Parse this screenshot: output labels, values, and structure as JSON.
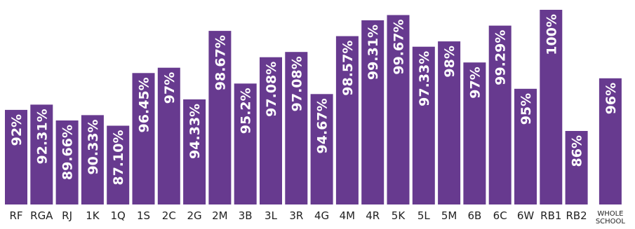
{
  "chart_data": {
    "type": "bar",
    "bar_color": "#673a8f",
    "label_color": "#ffffff",
    "axis_label_color": "#222222",
    "grid": false,
    "legend": "none",
    "categories": [
      "RF",
      "RGA",
      "RJ",
      "1K",
      "1Q",
      "1S",
      "2C",
      "2G",
      "2M",
      "3B",
      "3L",
      "3R",
      "4G",
      "4M",
      "4R",
      "5K",
      "5L",
      "5M",
      "6B",
      "6C",
      "6W",
      "RB1",
      "RB2",
      "WHOLE SCHOOL"
    ],
    "values": [
      92,
      92.31,
      89.66,
      90.33,
      87.1,
      96.45,
      97,
      94.33,
      98.67,
      95.2,
      97.08,
      97.08,
      94.67,
      98.57,
      99.31,
      99.67,
      97.33,
      98,
      97,
      99.29,
      95,
      100,
      86,
      96
    ],
    "value_labels": [
      "92%",
      "92.31%",
      "89.66%",
      "90.33%",
      "87.10%",
      "96.45%",
      "97%",
      "94.33%",
      "98.67%",
      "95.2%",
      "97.08%",
      "97.08%",
      "94.67%",
      "98.57%",
      "99.31%",
      "99.67%",
      "97.33%",
      "98%",
      "97%",
      "99.29%",
      "95%",
      "100%",
      "86%",
      "96%"
    ],
    "title": "",
    "xlabel": "",
    "ylabel": ""
  }
}
